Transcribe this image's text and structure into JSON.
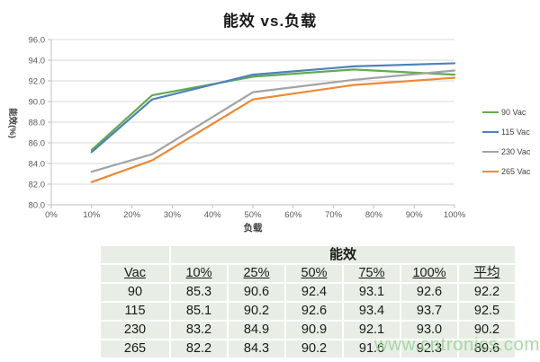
{
  "chart_data": {
    "type": "line",
    "title": "能效 vs.负载",
    "xlabel": "负载",
    "ylabel": "能效(%)",
    "x": [
      10,
      25,
      50,
      75,
      100
    ],
    "x_unit": "%",
    "series": [
      {
        "name": "90 Vac",
        "color": "#62ab4e",
        "values": [
          85.3,
          90.6,
          92.4,
          93.1,
          92.6
        ]
      },
      {
        "name": "115 Vac",
        "color": "#4e81bd",
        "values": [
          85.1,
          90.2,
          92.6,
          93.4,
          93.7
        ]
      },
      {
        "name": "230 Vac",
        "color": "#a3a3a3",
        "values": [
          83.2,
          84.9,
          90.9,
          92.1,
          93.0
        ]
      },
      {
        "name": "265 Vac",
        "color": "#ee8833",
        "values": [
          82.2,
          84.3,
          90.2,
          91.6,
          92.3
        ]
      }
    ],
    "xlim": [
      0,
      100
    ],
    "ylim": [
      80,
      96
    ],
    "x_ticks": [
      "0%",
      "10%",
      "20%",
      "30%",
      "40%",
      "50%",
      "60%",
      "70%",
      "80%",
      "90%",
      "100%"
    ],
    "y_ticks": [
      "96.0",
      "94.0",
      "92.0",
      "90.0",
      "88.0",
      "86.0",
      "84.0",
      "82.0",
      "80.0"
    ],
    "grid": true,
    "legend_position": "right"
  },
  "table": {
    "group_header": "能效",
    "columns": [
      "Vac",
      "10%",
      "25%",
      "50%",
      "75%",
      "100%",
      "平均"
    ],
    "rows": [
      [
        "90",
        "85.3",
        "90.6",
        "92.4",
        "93.1",
        "92.6",
        "92.2"
      ],
      [
        "115",
        "85.1",
        "90.2",
        "92.6",
        "93.4",
        "93.7",
        "92.5"
      ],
      [
        "230",
        "83.2",
        "84.9",
        "90.9",
        "92.1",
        "93.0",
        "90.2"
      ],
      [
        "265",
        "82.2",
        "84.3",
        "90.2",
        "91.6",
        "92.3",
        "89.6"
      ]
    ]
  },
  "watermark": "www.cntronics.com",
  "colors": {
    "grid": "#d9d9d9",
    "axis": "#bfbfbf",
    "tick_label": "#595959",
    "axis_title": "#3f3f3f",
    "title": "#1a1a1a",
    "table_bg": "#e8eee5",
    "table_text": "#1a1a1a",
    "watermark": "#9bd49b"
  }
}
